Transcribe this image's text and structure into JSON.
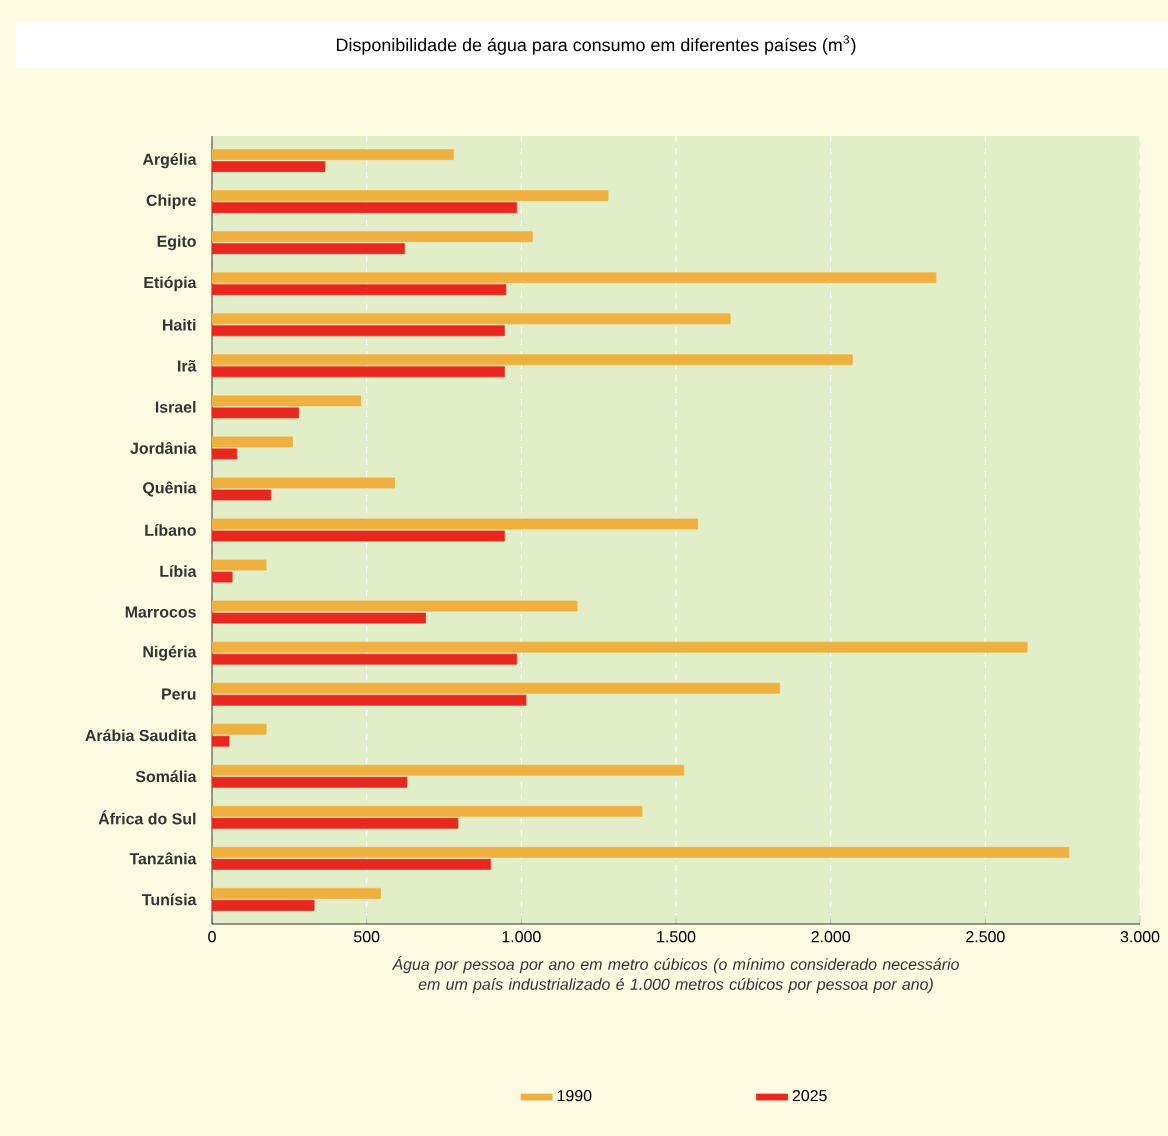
{
  "chart_data": {
    "type": "bar",
    "orientation": "horizontal",
    "title": "Disponibilidade de água para consumo em diferentes países (m$^{3}$)",
    "xlabel": "Água por pessoa por ano em metro cúbicos (o mínimo considerado necessário em um país industrializado é 1.000 metros cúbicos por pessoa por ano)",
    "categories": [
      "Argélia",
      "Chipre",
      "Egito",
      "Etiópia",
      "Haiti",
      "Irã",
      "Israel",
      "Jordânia",
      "Quênia",
      "Líbano",
      "Líbia",
      "Marrocos",
      "Nigéria",
      "Peru",
      "Arábia Saudita",
      "Somália",
      "África do Sul",
      "Tanzânia",
      "Tunísia"
    ],
    "series": [
      {
        "name": "1990",
        "color": "#f0b040",
        "values": [
          780,
          1280,
          1035,
          2340,
          1675,
          2070,
          480,
          260,
          590,
          1570,
          175,
          1180,
          2635,
          1835,
          175,
          1525,
          1390,
          2770,
          545
        ]
      },
      {
        "name": "2025",
        "color": "#e8281e",
        "values": [
          365,
          985,
          622,
          950,
          945,
          945,
          280,
          80,
          190,
          945,
          65,
          690,
          985,
          1015,
          55,
          630,
          795,
          900,
          330
        ]
      }
    ],
    "xlim": [
      0,
      3000
    ],
    "xticks": [
      0,
      500,
      {
        "value": 1000,
        "label": "1.000"
      },
      {
        "value": 1500,
        "label": "1.500"
      },
      {
        "value": 2000,
        "label": "2.000"
      },
      {
        "value": 2500,
        "label": "2.500"
      },
      {
        "value": 3000,
        "label": "3.000"
      }
    ],
    "grid": "x",
    "legend": "bottom"
  }
}
